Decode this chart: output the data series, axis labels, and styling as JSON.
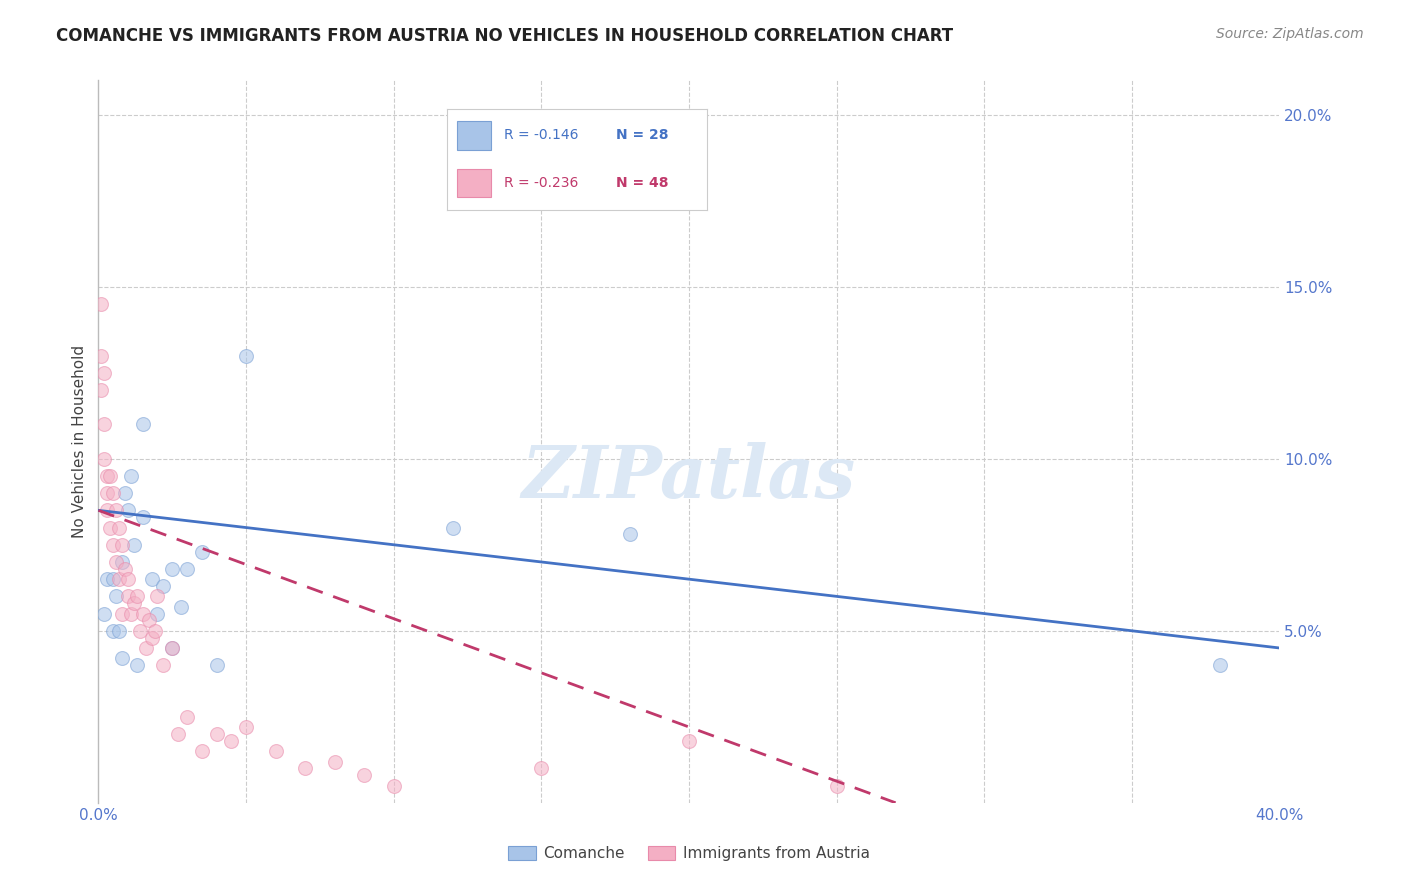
{
  "title": "COMANCHE VS IMMIGRANTS FROM AUSTRIA NO VEHICLES IN HOUSEHOLD CORRELATION CHART",
  "source": "Source: ZipAtlas.com",
  "ylabel": "No Vehicles in Household",
  "xlim": [
    0.0,
    0.4
  ],
  "ylim": [
    0.0,
    0.21
  ],
  "yticks": [
    0.05,
    0.1,
    0.15,
    0.2
  ],
  "ytick_labels": [
    "5.0%",
    "10.0%",
    "15.0%",
    "20.0%"
  ],
  "xticks": [
    0.0,
    0.05,
    0.1,
    0.15,
    0.2,
    0.25,
    0.3,
    0.35,
    0.4
  ],
  "xtick_labels": [
    "0.0%",
    "",
    "",
    "",
    "",
    "",
    "",
    "",
    "40.0%"
  ],
  "legend_blue_r": "R = -0.146",
  "legend_blue_n": "N = 28",
  "legend_pink_r": "R = -0.236",
  "legend_pink_n": "N = 48",
  "legend_label_blue": "Comanche",
  "legend_label_pink": "Immigrants from Austria",
  "blue_color": "#a8c4e8",
  "pink_color": "#f4afc4",
  "blue_edge": "#7aa0d4",
  "pink_edge": "#e88aaa",
  "trend_blue_color": "#4472c4",
  "trend_pink_color": "#c0396b",
  "watermark_color": "#dce8f5",
  "blue_scatter_x": [
    0.002,
    0.003,
    0.005,
    0.005,
    0.006,
    0.007,
    0.008,
    0.008,
    0.009,
    0.01,
    0.011,
    0.012,
    0.013,
    0.015,
    0.015,
    0.018,
    0.02,
    0.022,
    0.025,
    0.025,
    0.028,
    0.03,
    0.035,
    0.04,
    0.05,
    0.12,
    0.18,
    0.38
  ],
  "blue_scatter_y": [
    0.055,
    0.065,
    0.065,
    0.05,
    0.06,
    0.05,
    0.042,
    0.07,
    0.09,
    0.085,
    0.095,
    0.075,
    0.04,
    0.11,
    0.083,
    0.065,
    0.055,
    0.063,
    0.068,
    0.045,
    0.057,
    0.068,
    0.073,
    0.04,
    0.13,
    0.08,
    0.078,
    0.04
  ],
  "pink_scatter_x": [
    0.001,
    0.001,
    0.001,
    0.002,
    0.002,
    0.002,
    0.003,
    0.003,
    0.003,
    0.004,
    0.004,
    0.005,
    0.005,
    0.006,
    0.006,
    0.007,
    0.007,
    0.008,
    0.008,
    0.009,
    0.01,
    0.01,
    0.011,
    0.012,
    0.013,
    0.014,
    0.015,
    0.016,
    0.017,
    0.018,
    0.019,
    0.02,
    0.022,
    0.025,
    0.027,
    0.03,
    0.035,
    0.04,
    0.045,
    0.05,
    0.06,
    0.07,
    0.08,
    0.09,
    0.1,
    0.15,
    0.2,
    0.25
  ],
  "pink_scatter_y": [
    0.145,
    0.13,
    0.12,
    0.125,
    0.11,
    0.1,
    0.095,
    0.09,
    0.085,
    0.095,
    0.08,
    0.09,
    0.075,
    0.085,
    0.07,
    0.08,
    0.065,
    0.075,
    0.055,
    0.068,
    0.065,
    0.06,
    0.055,
    0.058,
    0.06,
    0.05,
    0.055,
    0.045,
    0.053,
    0.048,
    0.05,
    0.06,
    0.04,
    0.045,
    0.02,
    0.025,
    0.015,
    0.02,
    0.018,
    0.022,
    0.015,
    0.01,
    0.012,
    0.008,
    0.005,
    0.01,
    0.018,
    0.005
  ],
  "blue_trend_x": [
    0.0,
    0.4
  ],
  "blue_trend_y": [
    0.085,
    0.045
  ],
  "pink_trend_x": [
    0.0,
    0.27
  ],
  "pink_trend_y": [
    0.085,
    0.0
  ],
  "marker_size": 100,
  "marker_alpha": 0.55,
  "bg_color": "#ffffff",
  "grid_color": "#cccccc",
  "axis_color": "#bbbbbb",
  "tick_color": "#5577cc",
  "title_fontsize": 12,
  "source_fontsize": 10,
  "ylabel_fontsize": 11,
  "legend_fontsize": 11,
  "tick_fontsize": 11
}
